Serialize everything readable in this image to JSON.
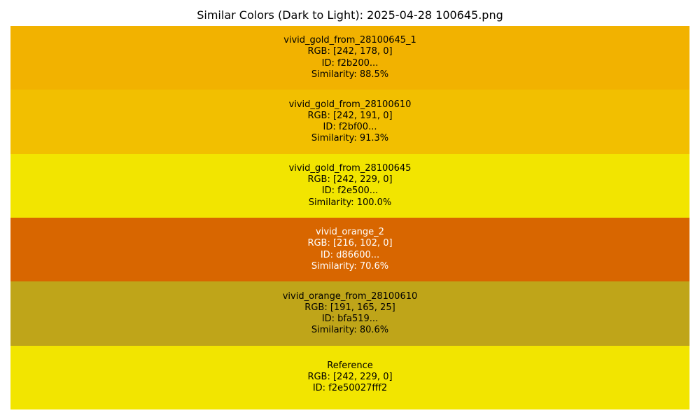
{
  "chart_data": {
    "type": "table",
    "title": "Similar Colors (Dark to Light): 2025-04-28 100645.png",
    "rgb_prefix": "RGB: ",
    "id_prefix": "ID: ",
    "similarity_prefix": "Similarity: ",
    "swatches": [
      {
        "name": "vivid_gold_from_28100645_1",
        "rgb": [
          242,
          178,
          0
        ],
        "rgb_text": "[242, 178, 0]",
        "id": "f2b200...",
        "similarity": 88.5,
        "similarity_text": "88.5%",
        "color": "#f2b200",
        "text_color": "#000000"
      },
      {
        "name": "vivid_gold_from_28100610",
        "rgb": [
          242,
          191,
          0
        ],
        "rgb_text": "[242, 191, 0]",
        "id": "f2bf00...",
        "similarity": 91.3,
        "similarity_text": "91.3%",
        "color": "#f2bf00",
        "text_color": "#000000"
      },
      {
        "name": "vivid_gold_from_28100645",
        "rgb": [
          242,
          229,
          0
        ],
        "rgb_text": "[242, 229, 0]",
        "id": "f2e500...",
        "similarity": 100.0,
        "similarity_text": "100.0%",
        "color": "#f2e500",
        "text_color": "#000000"
      },
      {
        "name": "vivid_orange_2",
        "rgb": [
          216,
          102,
          0
        ],
        "rgb_text": "[216, 102, 0]",
        "id": "d86600...",
        "similarity": 70.6,
        "similarity_text": "70.6%",
        "color": "#d86600",
        "text_color": "#ffffff"
      },
      {
        "name": "vivid_orange_from_28100610",
        "rgb": [
          191,
          165,
          25
        ],
        "rgb_text": "[191, 165, 25]",
        "id": "bfa519...",
        "similarity": 80.6,
        "similarity_text": "80.6%",
        "color": "#bfa519",
        "text_color": "#000000"
      },
      {
        "name": "Reference",
        "rgb": [
          242,
          229,
          0
        ],
        "rgb_text": "[242, 229, 0]",
        "id": "f2e50027fff2",
        "color": "#f2e500",
        "text_color": "#000000"
      }
    ]
  }
}
